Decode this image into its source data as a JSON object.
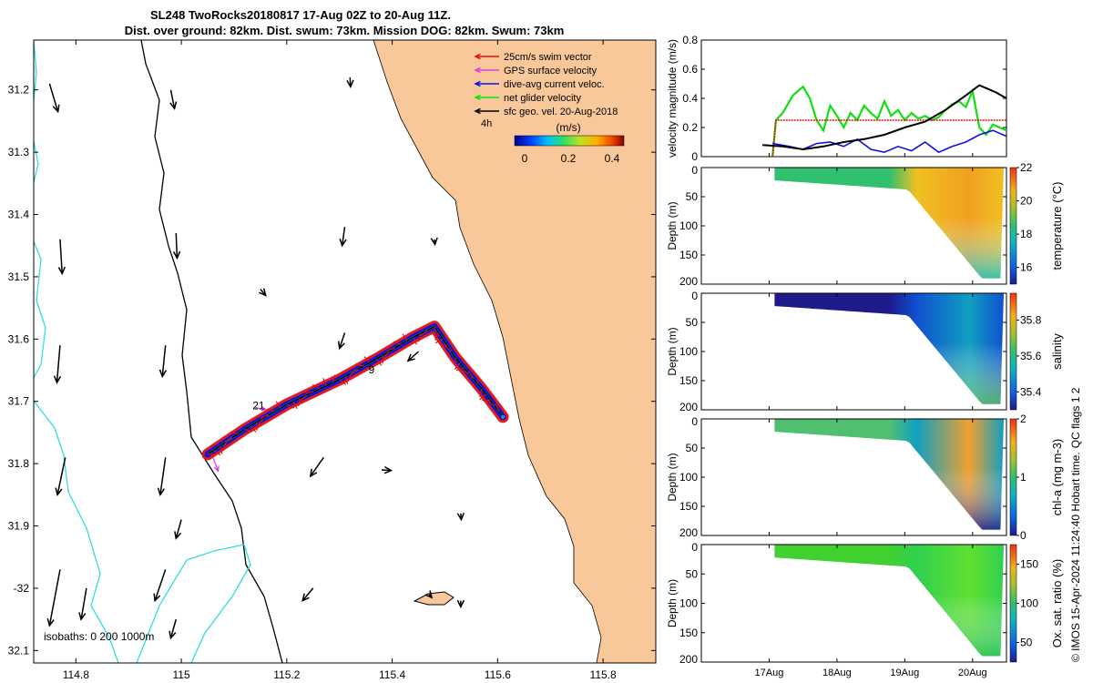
{
  "title": {
    "line1": "SL248 TwoRocks20180817 17-Aug 02Z to 20-Aug 11Z.",
    "line2": "Dist. over ground: 82km. Dist. swum: 73km. Mission DOG: 82km. Swum: 73km"
  },
  "colors": {
    "land": "#f8c89a",
    "isobath_shallow": "#000000",
    "isobath_deep": "#33dddd",
    "swim": "#e01010",
    "gps": "#e040e0",
    "current": "#1010e0",
    "net": "#10e010",
    "geo": "#000000",
    "speed_black": "#000000"
  },
  "chart_data": [
    {
      "type": "scatter",
      "name": "map",
      "xlabel": "",
      "ylabel": "",
      "xlim": [
        114.72,
        115.9
      ],
      "ylim": [
        -32.12,
        -31.12
      ],
      "xticks": [
        114.8,
        115,
        115.2,
        115.4,
        115.6,
        115.8
      ],
      "xtick_labels": [
        "114.8",
        "115",
        "115.2",
        "115.4",
        "115.6",
        "115.8"
      ],
      "yticks": [
        -31.2,
        -31.3,
        -31.4,
        -31.5,
        -31.6,
        -31.7,
        -31.8,
        -31.9,
        -32,
        -32.1
      ],
      "ytick_labels": [
        "31.2",
        "31.3",
        "31.4",
        "31.5",
        "31.6",
        "31.7",
        "31.8",
        "31.9",
        "-32",
        "32.1"
      ],
      "legend": {
        "position": "top-right",
        "entries": [
          {
            "label": "25cm/s swim vector",
            "color": "#e01010"
          },
          {
            "label": "GPS surface velocity",
            "color": "#e040e0"
          },
          {
            "label": "dive-avg current veloc.",
            "color": "#1010e0"
          },
          {
            "label": "net glider velocity",
            "color": "#10e010"
          },
          {
            "label": "sfc geo. vel. 20-Aug-2018",
            "color": "#000000"
          }
        ],
        "marker_label": "4h"
      },
      "colorbar": {
        "label": "(m/s)",
        "ticks": [
          "0",
          "0.2",
          "0.4"
        ],
        "range": [
          0,
          0.5
        ]
      },
      "track": [
        [
          115.05,
          -31.785
        ],
        [
          115.12,
          -31.745
        ],
        [
          115.2,
          -31.705
        ],
        [
          115.3,
          -31.665
        ],
        [
          115.37,
          -31.632
        ],
        [
          115.44,
          -31.597
        ],
        [
          115.48,
          -31.58
        ],
        [
          115.52,
          -31.63
        ],
        [
          115.57,
          -31.68
        ],
        [
          115.61,
          -31.725
        ]
      ],
      "track_labels": [
        {
          "text": "21",
          "lon": 115.135,
          "lat": -31.713
        },
        {
          "text": "9",
          "lon": 115.355,
          "lat": -31.655
        }
      ],
      "geo_arrows": [
        [
          114.75,
          -31.19,
          0.016,
          -0.045
        ],
        [
          114.77,
          -31.44,
          0.004,
          -0.055
        ],
        [
          114.77,
          -31.61,
          -0.006,
          -0.06
        ],
        [
          114.78,
          -31.79,
          -0.015,
          -0.06
        ],
        [
          114.77,
          -31.97,
          -0.02,
          -0.09
        ],
        [
          114.98,
          -31.2,
          0.007,
          -0.03
        ],
        [
          114.99,
          -31.43,
          0.002,
          -0.04
        ],
        [
          114.97,
          -31.61,
          -0.006,
          -0.05
        ],
        [
          114.97,
          -31.79,
          -0.01,
          -0.06
        ],
        [
          114.97,
          -31.97,
          -0.02,
          -0.05
        ],
        [
          115.15,
          -31.52,
          0.01,
          -0.01
        ],
        [
          115.32,
          -31.18,
          0.001,
          -0.015
        ],
        [
          115.31,
          -31.42,
          -0.005,
          -0.03
        ],
        [
          115.31,
          -31.59,
          -0.01,
          -0.025
        ],
        [
          115.48,
          -31.44,
          0.001,
          -0.008
        ],
        [
          115.38,
          -31.81,
          0.018,
          -0.001
        ],
        [
          115.45,
          -31.62,
          -0.02,
          -0.015
        ],
        [
          115.53,
          -31.88,
          0.001,
          -0.01
        ],
        [
          115.47,
          -32.01,
          0.005,
          -0.005
        ],
        [
          115.53,
          -32.02,
          0.0,
          -0.01
        ],
        [
          115.27,
          -31.79,
          -0.025,
          -0.03
        ],
        [
          115.25,
          -32.0,
          -0.02,
          -0.02
        ],
        [
          115.0,
          -31.89,
          -0.01,
          -0.03
        ],
        [
          114.82,
          -32.0,
          -0.01,
          -0.05
        ],
        [
          114.99,
          -32.05,
          -0.01,
          -0.03
        ]
      ],
      "isobath_label": "isobaths: 0   200  1000m"
    },
    {
      "type": "line",
      "name": "velocity",
      "xlabel": "",
      "ylabel": "velocity magnitude (m/s)",
      "ylim": [
        0,
        0.8
      ],
      "yticks": [
        "0",
        "0.2",
        "0.4",
        "0.6",
        "0.8"
      ],
      "xlim": [
        0,
        4.5
      ],
      "series": [
        {
          "name": "net glider velocity",
          "color": "#10e010",
          "x": [
            1.05,
            1.1,
            1.2,
            1.35,
            1.5,
            1.6,
            1.7,
            1.8,
            1.9,
            2.0,
            2.1,
            2.2,
            2.3,
            2.4,
            2.5,
            2.6,
            2.7,
            2.8,
            2.9,
            3.0,
            3.1,
            3.2,
            3.3,
            3.4,
            3.5,
            3.6,
            3.7,
            3.8,
            3.9,
            4.0,
            4.1,
            4.2,
            4.3,
            4.4,
            4.5
          ],
          "values": [
            0.0,
            0.25,
            0.3,
            0.42,
            0.48,
            0.4,
            0.25,
            0.18,
            0.35,
            0.28,
            0.2,
            0.3,
            0.25,
            0.35,
            0.3,
            0.26,
            0.38,
            0.28,
            0.32,
            0.25,
            0.3,
            0.26,
            0.28,
            0.25,
            0.27,
            0.32,
            0.36,
            0.38,
            0.34,
            0.45,
            0.2,
            0.15,
            0.22,
            0.2,
            0.18
          ]
        },
        {
          "name": "25cm/s swim vector",
          "color": "#e01010",
          "x": [
            1.05,
            1.1,
            4.5
          ],
          "values": [
            0.0,
            0.25,
            0.25
          ]
        },
        {
          "name": "dive-avg current veloc.",
          "color": "#1010e0",
          "x": [
            1.05,
            1.3,
            1.5,
            1.7,
            1.9,
            2.1,
            2.3,
            2.5,
            2.7,
            2.9,
            3.1,
            3.3,
            3.5,
            3.7,
            3.9,
            4.1,
            4.3,
            4.5
          ],
          "values": [
            0.09,
            0.07,
            0.05,
            0.09,
            0.1,
            0.07,
            0.12,
            0.05,
            0.03,
            0.07,
            0.04,
            0.1,
            0.03,
            0.07,
            0.1,
            0.15,
            0.18,
            0.14
          ]
        },
        {
          "name": "sfc geo. vel.",
          "color": "#000000",
          "x": [
            0.9,
            1.2,
            1.5,
            1.8,
            2.1,
            2.4,
            2.7,
            3.0,
            3.3,
            3.6,
            3.9,
            4.1,
            4.2,
            4.35,
            4.5
          ],
          "values": [
            0.08,
            0.07,
            0.05,
            0.07,
            0.1,
            0.12,
            0.15,
            0.2,
            0.24,
            0.32,
            0.42,
            0.49,
            0.47,
            0.44,
            0.4
          ]
        }
      ]
    },
    {
      "type": "heatmap",
      "name": "temperature",
      "ylabel": "Depth (m)",
      "cbar_label": "temperature (°C)",
      "yticks": [
        "0",
        "50",
        "100",
        "150",
        "200"
      ],
      "cbar_ticks": [
        "16",
        "18",
        "20",
        "22"
      ],
      "cbar_range": [
        15,
        22
      ]
    },
    {
      "type": "heatmap",
      "name": "salinity",
      "ylabel": "Depth (m)",
      "cbar_label": "salinity",
      "yticks": [
        "0",
        "50",
        "100",
        "150",
        "200"
      ],
      "cbar_ticks": [
        "35.4",
        "35.6",
        "35.8"
      ],
      "cbar_range": [
        35.3,
        35.95
      ]
    },
    {
      "type": "heatmap",
      "name": "chla",
      "ylabel": "Depth (m)",
      "cbar_label": "chl-a (mg m-3)",
      "yticks": [
        "0",
        "50",
        "100",
        "150",
        "200"
      ],
      "cbar_ticks": [
        "0",
        "1",
        "2"
      ],
      "cbar_range": [
        0,
        2
      ]
    },
    {
      "type": "heatmap",
      "name": "oxsat",
      "ylabel": "Depth (m)",
      "cbar_label": "Ox. sat. ratio (%)",
      "yticks": [
        "0",
        "50",
        "100",
        "150",
        "200"
      ],
      "cbar_ticks": [
        "50",
        "100",
        "150"
      ],
      "cbar_range": [
        25,
        175
      ],
      "xticks": [
        "17Aug",
        "18Aug",
        "19Aug",
        "20Aug"
      ]
    }
  ],
  "footer": {
    "qc_label": "QC flags 1  2",
    "credit": "© IMOS 15-Apr-2024 11:24:40 Hobart time."
  }
}
